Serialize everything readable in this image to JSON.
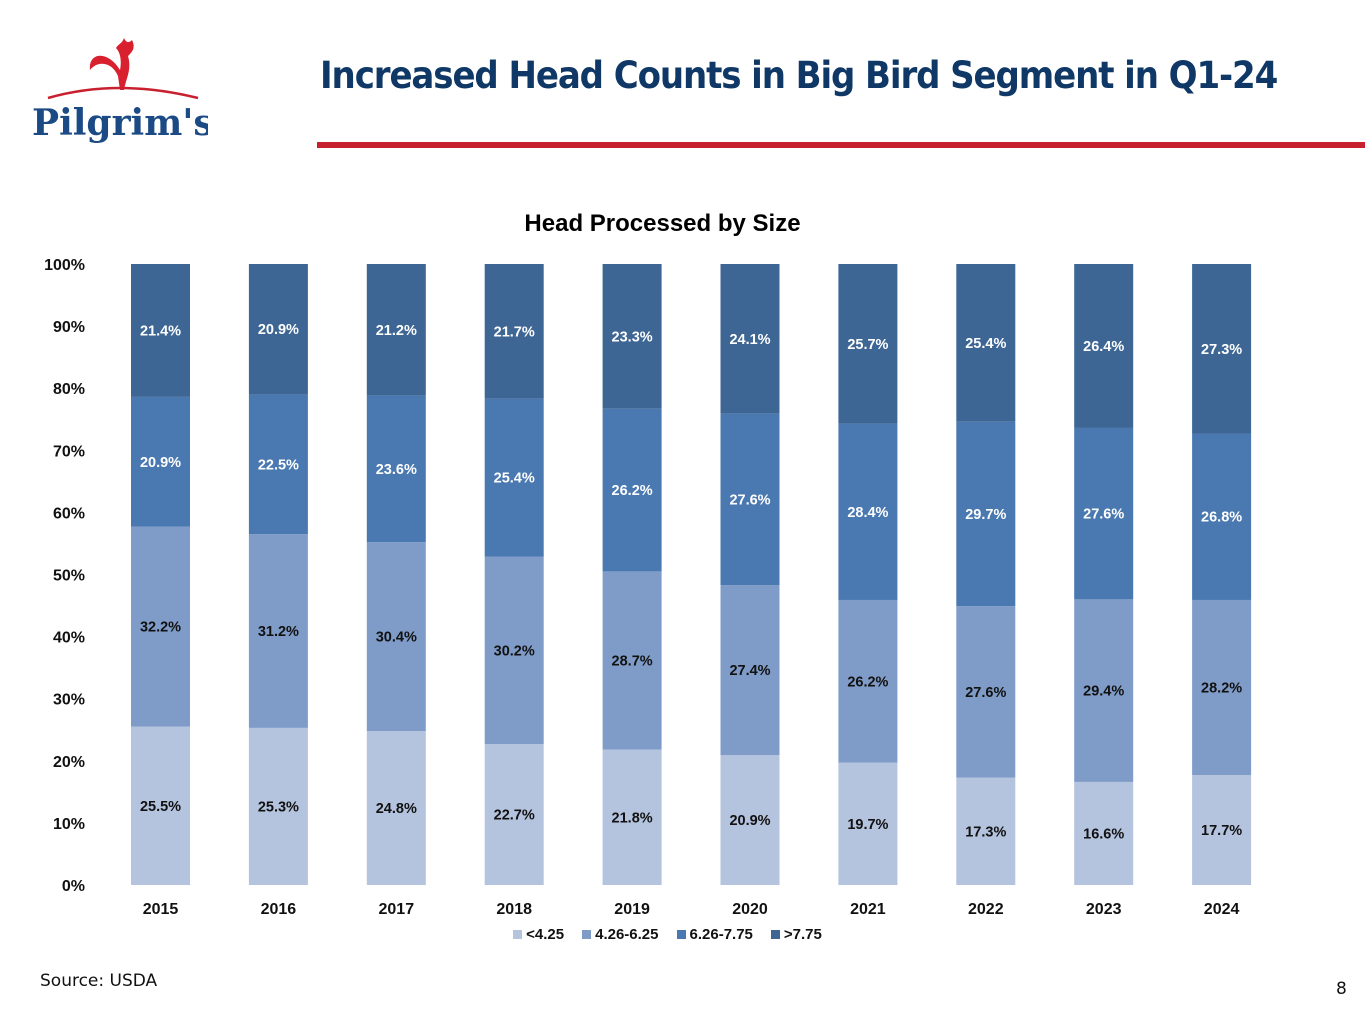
{
  "header": {
    "logo_text": "Pilgrim's",
    "title": "Increased Head Counts in Big Bird Segment in Q1-24"
  },
  "footer": {
    "source": "Source: USDA",
    "page_number": "8"
  },
  "colors": {
    "brand_navy": "#0f3867",
    "brand_red": "#c8202f"
  },
  "chart_data": {
    "type": "bar",
    "stacked": true,
    "title": "Head Processed by Size",
    "xlabel": "",
    "ylabel": "",
    "ylim": [
      0,
      100
    ],
    "y_ticks": [
      "0%",
      "10%",
      "20%",
      "30%",
      "40%",
      "50%",
      "60%",
      "70%",
      "80%",
      "90%",
      "100%"
    ],
    "grid": false,
    "legend_position": "bottom",
    "categories": [
      "2015",
      "2016",
      "2017",
      "2018",
      "2019",
      "2020",
      "2021",
      "2022",
      "2023",
      "2024"
    ],
    "series": [
      {
        "name": "<4.25",
        "color": "#b4c3de",
        "label_color": "#111111",
        "values": [
          25.5,
          25.3,
          24.8,
          22.7,
          21.8,
          20.9,
          19.7,
          17.3,
          16.6,
          17.7
        ],
        "labels": [
          "25.5%",
          "25.3%",
          "24.8%",
          "22.7%",
          "21.8%",
          "20.9%",
          "19.7%",
          "17.3%",
          "16.6%",
          "17.7%"
        ]
      },
      {
        "name": "4.26-6.25",
        "color": "#7f9cc8",
        "label_color": "#111111",
        "values": [
          32.2,
          31.2,
          30.4,
          30.2,
          28.7,
          27.4,
          26.2,
          27.6,
          29.4,
          28.2
        ],
        "labels": [
          "32.2%",
          "31.2%",
          "30.4%",
          "30.2%",
          "28.7%",
          "27.4%",
          "26.2%",
          "27.6%",
          "29.4%",
          "28.2%"
        ]
      },
      {
        "name": "6.26-7.75",
        "color": "#4a78b0",
        "label_color": "#ffffff",
        "values": [
          20.9,
          22.5,
          23.6,
          25.4,
          26.2,
          27.6,
          28.4,
          29.7,
          27.6,
          26.8
        ],
        "labels": [
          "20.9%",
          "22.5%",
          "23.6%",
          "25.4%",
          "26.2%",
          "27.6%",
          "28.4%",
          "29.7%",
          "27.6%",
          "26.8%"
        ]
      },
      {
        "name": ">7.75",
        "color": "#3d6695",
        "label_color": "#ffffff",
        "values": [
          21.4,
          20.9,
          21.2,
          21.7,
          23.3,
          24.1,
          25.7,
          25.4,
          26.4,
          27.3
        ],
        "labels": [
          "21.4%",
          "20.9%",
          "21.2%",
          "21.7%",
          "23.3%",
          "24.1%",
          "25.7%",
          "25.4%",
          "26.4%",
          "27.3%"
        ]
      }
    ]
  }
}
